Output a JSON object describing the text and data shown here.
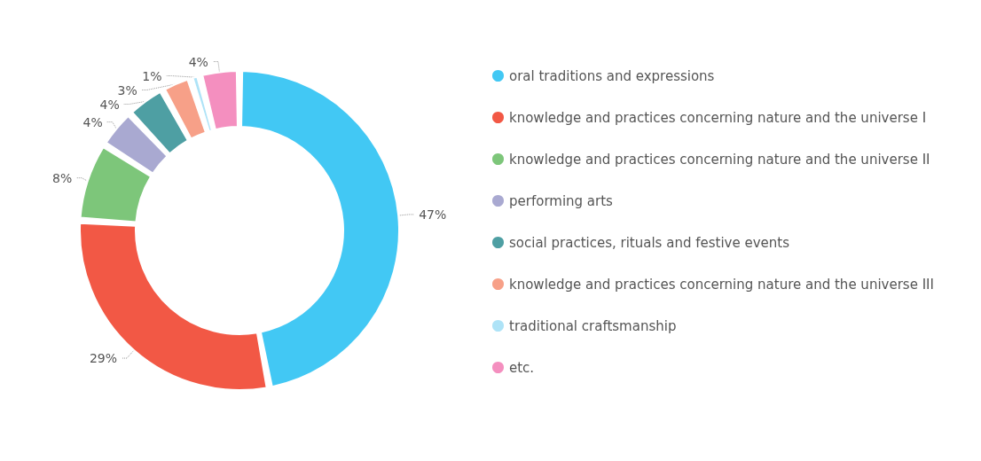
{
  "chart_data": {
    "type": "donut",
    "categories": [
      "oral traditions and expressions",
      "knowledge and practices concerning nature and the universe I",
      "knowledge and practices concerning nature and the universe II",
      "performing arts",
      "social practices, rituals and festive events",
      "knowledge and practices concerning nature and the universe III",
      "traditional craftsmanship",
      "etc."
    ],
    "values": [
      47,
      29,
      8,
      4,
      4,
      3,
      1,
      4
    ],
    "colors": [
      "#42c8f4",
      "#f25845",
      "#7dc67a",
      "#a9a9d1",
      "#4e9fa3",
      "#f7a088",
      "#aee3f7",
      "#f48fbf"
    ],
    "value_labels": [
      "47%",
      "29%",
      "8%",
      "4%",
      "4%",
      "3%",
      "1%",
      "4%"
    ],
    "legend": "right"
  }
}
